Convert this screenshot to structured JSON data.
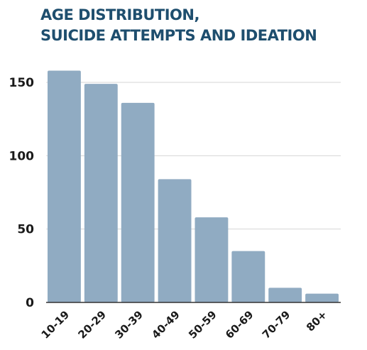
{
  "colors": {
    "title": "#1E4E6E",
    "bar": "#90ABC2",
    "grid": "#D6D6D6",
    "axis": "#333333",
    "tick_text": "#1A1A1A"
  },
  "chart_data": {
    "type": "bar",
    "title_lines": [
      "AGE DISTRIBUTION,",
      "SUICIDE ATTEMPTS AND IDEATION"
    ],
    "xlabel": "",
    "ylabel": "",
    "categories": [
      "10-19",
      "20-29",
      "30-39",
      "40-49",
      "50-59",
      "60-69",
      "70-79",
      "80+"
    ],
    "values": [
      158,
      149,
      136,
      84,
      58,
      35,
      10,
      6
    ],
    "ylim": [
      0,
      160
    ],
    "yticks": [
      0,
      50,
      100,
      150
    ],
    "grid": true,
    "legend": "none"
  }
}
